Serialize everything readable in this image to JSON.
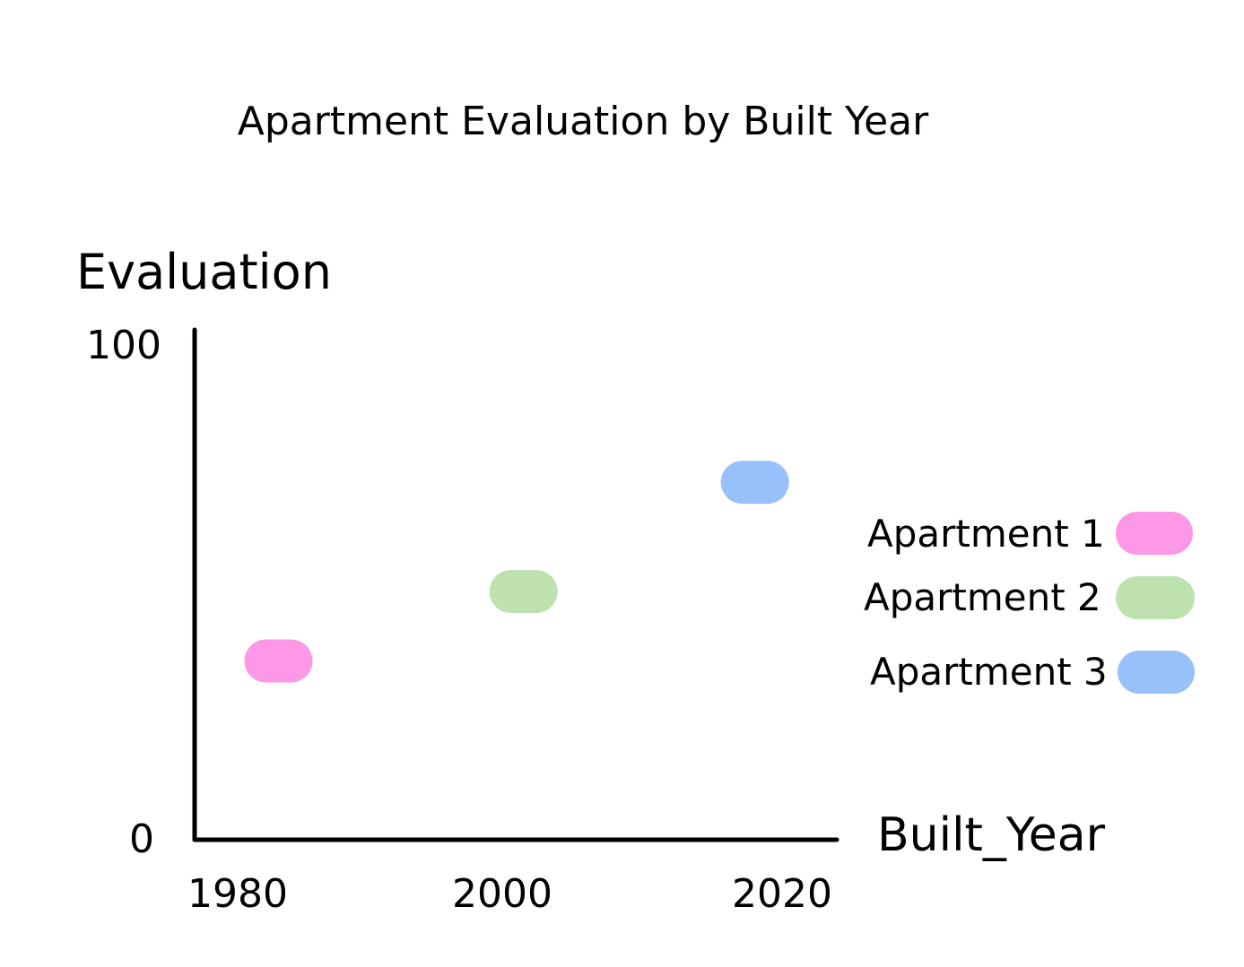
{
  "chart_data": {
    "type": "scatter",
    "title": "Apartment Evaluation by Built Year",
    "xlabel": "Built_Year",
    "ylabel": "Evaluation",
    "x_ticks": [
      "1980",
      "2000",
      "2020"
    ],
    "y_ticks": [
      "0",
      "100"
    ],
    "ylim": [
      0,
      100
    ],
    "grid": false,
    "legend_position": "right",
    "series": [
      {
        "name": "Apartment 1",
        "color": "#fc98e6",
        "x": 1983,
        "y": 36
      },
      {
        "name": "Apartment 2",
        "color": "#bde2b0",
        "x": 2001,
        "y": 50
      },
      {
        "name": "Apartment 3",
        "color": "#98c0fb",
        "x": 2018,
        "y": 72
      }
    ]
  }
}
